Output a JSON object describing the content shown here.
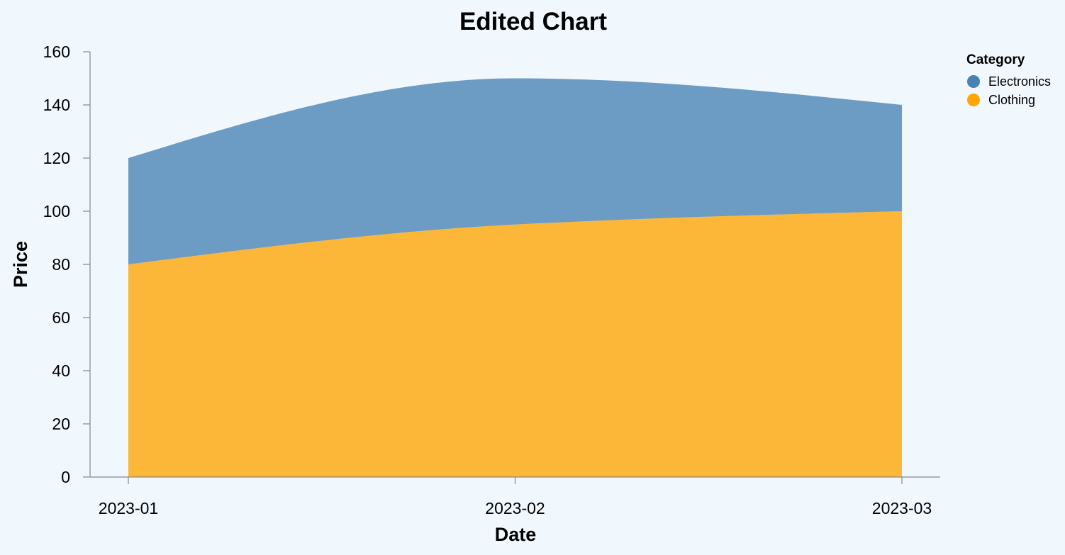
{
  "chart_data": {
    "type": "area",
    "stacked": true,
    "title": "Edited Chart",
    "xlabel": "Date",
    "ylabel": "Price",
    "x": [
      "2023-01",
      "2023-02",
      "2023-03"
    ],
    "ylim": [
      0,
      160
    ],
    "yticks": [
      0,
      20,
      40,
      60,
      80,
      100,
      120,
      140,
      160
    ],
    "grid": false,
    "legend": {
      "title": "Category",
      "placement": "top-right",
      "entries": [
        "Electronics",
        "Clothing"
      ]
    },
    "series": [
      {
        "name": "Clothing",
        "values": [
          80,
          95,
          100
        ],
        "color": "#ffa500"
      },
      {
        "name": "Electronics",
        "values": [
          40,
          55,
          40
        ],
        "color": "#4682b4"
      }
    ]
  }
}
